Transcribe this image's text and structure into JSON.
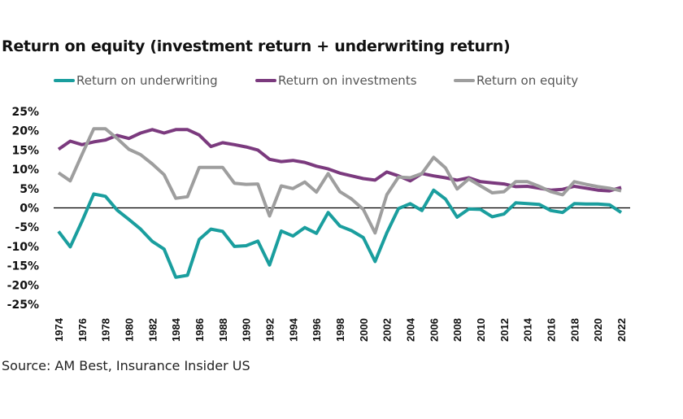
{
  "title": "Return on equity (investment return + underwriting return)",
  "source": "Source: AM Best, Insurance Insider US",
  "legend": [
    {
      "label": "Return on underwriting",
      "color": "#1a9e9e"
    },
    {
      "label": "Return on investments",
      "color": "#7b3a7e"
    },
    {
      "label": "Return on equity",
      "color": "#9e9e9e"
    }
  ],
  "chart_data": {
    "type": "line",
    "title": "Return on equity (investment return + underwriting return)",
    "xlabel": "",
    "ylabel": "",
    "ylim": [
      -25,
      25
    ],
    "yticks": [
      25,
      20,
      15,
      10,
      5,
      0,
      -5,
      -10,
      -15,
      -20,
      -25
    ],
    "ytick_labels": [
      "25%",
      "20%",
      "15%",
      "10%",
      "5%",
      "0%",
      "-5%",
      "-10%",
      "-15%",
      "-20%",
      "-25%"
    ],
    "xticks": [
      1974,
      1976,
      1978,
      1980,
      1982,
      1984,
      1986,
      1988,
      1990,
      1992,
      1994,
      1996,
      1998,
      2000,
      2002,
      2004,
      2006,
      2008,
      2010,
      2012,
      2014,
      2016,
      2018,
      2020,
      2022
    ],
    "x": [
      1974,
      1975,
      1976,
      1977,
      1978,
      1979,
      1980,
      1981,
      1982,
      1983,
      1984,
      1985,
      1986,
      1987,
      1988,
      1989,
      1990,
      1991,
      1992,
      1993,
      1994,
      1995,
      1996,
      1997,
      1998,
      1999,
      2000,
      2001,
      2002,
      2003,
      2004,
      2005,
      2006,
      2007,
      2008,
      2009,
      2010,
      2011,
      2012,
      2013,
      2014,
      2015,
      2016,
      2017,
      2018,
      2019,
      2020,
      2021,
      2022
    ],
    "grid": false,
    "zero_line": true,
    "legend_position": "top-center",
    "series": [
      {
        "name": "Return on underwriting",
        "color": "#1a9e9e",
        "values": [
          -6.1,
          -10.1,
          -3.5,
          3.6,
          3.0,
          -0.6,
          -3.0,
          -5.5,
          -8.7,
          -10.7,
          -18.0,
          -17.5,
          -8.2,
          -5.5,
          -6.1,
          -10.0,
          -9.8,
          -8.6,
          -14.8,
          -6.0,
          -7.3,
          -5.1,
          -6.6,
          -1.2,
          -4.7,
          -5.9,
          -7.7,
          -13.9,
          -6.5,
          -0.2,
          1.1,
          -0.7,
          4.6,
          2.3,
          -2.4,
          -0.3,
          -0.4,
          -2.3,
          -1.6,
          1.3,
          1.1,
          0.9,
          -0.7,
          -1.2,
          1.1,
          1.0,
          1.0,
          0.8,
          -1.2
        ]
      },
      {
        "name": "Return on investments",
        "color": "#7b3a7e",
        "values": [
          15.2,
          17.3,
          16.4,
          17.1,
          17.6,
          18.8,
          18.0,
          19.4,
          20.3,
          19.4,
          20.3,
          20.3,
          18.9,
          15.9,
          16.9,
          16.4,
          15.8,
          15.0,
          12.6,
          12.0,
          12.3,
          11.8,
          10.8,
          10.1,
          9.0,
          8.3,
          7.6,
          7.2,
          9.3,
          8.3,
          7.0,
          8.9,
          8.3,
          7.8,
          7.2,
          7.8,
          6.8,
          6.5,
          6.2,
          5.5,
          5.6,
          5.1,
          4.6,
          4.8,
          5.6,
          5.1,
          4.6,
          4.4,
          5.3
        ]
      },
      {
        "name": "Return on equity",
        "color": "#9e9e9e",
        "values": [
          9.1,
          7.0,
          13.8,
          20.5,
          20.5,
          18.0,
          15.2,
          13.8,
          11.4,
          8.6,
          2.5,
          2.9,
          10.5,
          10.5,
          10.5,
          6.4,
          6.1,
          6.2,
          -2.1,
          5.7,
          5.0,
          6.7,
          4.1,
          8.9,
          4.2,
          2.3,
          -0.4,
          -6.5,
          3.4,
          8.0,
          7.8,
          8.9,
          13.1,
          10.4,
          4.9,
          7.5,
          5.7,
          3.9,
          4.2,
          6.8,
          6.8,
          5.6,
          4.2,
          3.4,
          6.8,
          6.1,
          5.5,
          5.1,
          4.4
        ]
      }
    ]
  }
}
